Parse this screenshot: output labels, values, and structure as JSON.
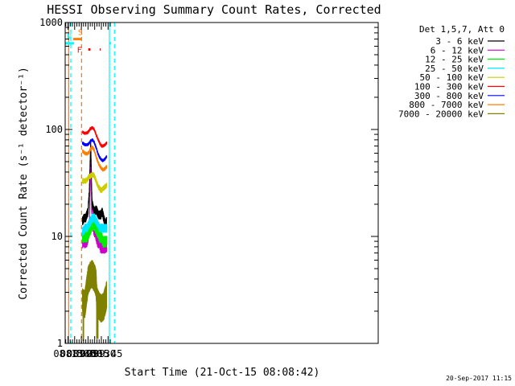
{
  "chart_data": {
    "type": "line",
    "title": "HESSI Observing Summary Count Rates, Corrected",
    "xlabel": "Start Time (21-Oct-15 08:08:42)",
    "ylabel": "Corrected Count Rate (s⁻¹ detector⁻¹)",
    "y_scale": "log",
    "ylim": [
      1,
      1000
    ],
    "xlim_min": [
      488.7,
      1192
    ],
    "y_ticks": [
      {
        "v": 1,
        "label": "1"
      },
      {
        "v": 10,
        "label": "10"
      },
      {
        "v": 100,
        "label": "100"
      },
      {
        "v": 1000,
        "label": "1000"
      }
    ],
    "x_ticks": [
      {
        "v": 495,
        "label": "08:15"
      },
      {
        "v": 510,
        "label": "08:30"
      },
      {
        "v": 525,
        "label": "08:45"
      },
      {
        "v": 540,
        "label": "09:00"
      },
      {
        "v": 555,
        "label": "09:15"
      },
      {
        "v": 570,
        "label": "09:30"
      },
      {
        "v": 585,
        "label": "09:45"
      }
    ],
    "data_span_min": [
      527.5,
      582
    ],
    "legend_header": "Det 1,5,7, Att 0",
    "series": [
      {
        "name": "3 - 6 keV",
        "color": "#000000",
        "x": [
          527.5,
          532,
          535,
          537,
          540,
          543,
          546,
          549,
          552,
          555,
          558,
          561,
          563,
          566,
          569,
          572,
          575,
          577,
          579,
          582
        ],
        "values": [
          14,
          15,
          15,
          16,
          17,
          27,
          75,
          21,
          18,
          17,
          18,
          17,
          16,
          16,
          16,
          17,
          15,
          14,
          13,
          14
        ]
      },
      {
        "name": "6 - 12 keV",
        "color": "#cc00cc",
        "x": [
          527.5,
          533,
          537,
          540,
          543,
          545,
          546,
          548,
          550,
          553,
          556,
          559,
          562,
          565,
          568,
          571,
          574,
          576,
          578,
          582
        ],
        "values": [
          9,
          9,
          9,
          10,
          12,
          30,
          70,
          20,
          13,
          12,
          11,
          10,
          9,
          9,
          8,
          8,
          8,
          8,
          8,
          8
        ]
      },
      {
        "name": "12 - 25 keV",
        "color": "#00ee00",
        "x": [
          527.5,
          533,
          538,
          542,
          546,
          550,
          554,
          558,
          562,
          566,
          570,
          574,
          578,
          582
        ],
        "values": [
          10,
          10,
          10,
          11,
          12,
          13,
          13,
          12,
          11,
          10,
          10,
          9,
          9,
          9
        ]
      },
      {
        "name": "25 - 50 keV",
        "color": "#00e5ff",
        "x": [
          527.5,
          533,
          538,
          542,
          546,
          550,
          554,
          558,
          562,
          566,
          570,
          574,
          578,
          582
        ],
        "values": [
          11,
          12,
          12,
          13,
          14,
          15,
          15,
          14,
          13,
          12,
          12,
          12,
          12,
          12
        ]
      },
      {
        "name": "50 - 100 keV",
        "color": "#cccc00",
        "x": [
          527.5,
          533,
          538,
          542,
          546,
          550,
          554,
          558,
          562,
          566,
          570,
          574,
          578,
          582
        ],
        "values": [
          33,
          33,
          34,
          36,
          37,
          38,
          37,
          33,
          30,
          28,
          27,
          28,
          29,
          30
        ]
      },
      {
        "name": "100 - 300 keV",
        "color": "#ff0000",
        "x": [
          527.5,
          533,
          538,
          542,
          546,
          550,
          554,
          558,
          562,
          566,
          570,
          574,
          578,
          582
        ],
        "values": [
          95,
          92,
          93,
          97,
          102,
          104,
          100,
          90,
          82,
          75,
          70,
          70,
          72,
          75
        ]
      },
      {
        "name": "300 - 800 keV",
        "color": "#0000ff",
        "x": [
          527.5,
          533,
          538,
          542,
          546,
          550,
          554,
          558,
          562,
          566,
          570,
          574,
          578,
          582
        ],
        "values": [
          75,
          72,
          72,
          74,
          78,
          80,
          76,
          68,
          60,
          55,
          52,
          51,
          53,
          56
        ]
      },
      {
        "name": "800 - 7000 keV",
        "color": "#ff7f00",
        "x": [
          527.5,
          533,
          538,
          542,
          546,
          550,
          554,
          558,
          562,
          566,
          570,
          574,
          578,
          582
        ],
        "values": [
          63,
          60,
          59,
          61,
          66,
          68,
          64,
          56,
          50,
          46,
          43,
          42,
          43,
          45
        ]
      },
      {
        "name": "7000 - 20000 keV",
        "color": "#808000",
        "x": [
          527.5,
          533,
          535,
          540,
          545,
          550,
          555,
          558,
          560,
          565,
          570,
          575,
          580,
          582
        ],
        "values": [
          2.5,
          2.4,
          2.8,
          4,
          4.5,
          4.6,
          4.2,
          3.8,
          2.6,
          2.3,
          2.2,
          2.3,
          2.7,
          3
        ]
      }
    ],
    "flags": [
      {
        "label": "S",
        "color": "#ff7f00",
        "from_min": 506.5,
        "to_min": 525.5,
        "level": 700,
        "note": "SAA interval"
      },
      {
        "label": "N",
        "color": "#00ffff",
        "from_min": 488.7,
        "to_min": 508.8,
        "level": 640,
        "note": "Night interval"
      },
      {
        "label": "",
        "color": "#00ffff",
        "from_min": 588,
        "to_min": 592,
        "level": 640,
        "note": "Night interval"
      },
      {
        "label": "F",
        "color": "#ff0000",
        "from_min": 540.5,
        "to_min": 545.5,
        "level": 560,
        "note": "Flare interval"
      },
      {
        "label": "",
        "color": "#ff0000",
        "from_min": 566.5,
        "to_min": 568.2,
        "level": 560,
        "note": "Flare interval"
      }
    ],
    "vertical_lines": [
      {
        "x": 496.5,
        "color": "#ff7f00",
        "style": "solid"
      },
      {
        "x": 501.3,
        "color": "#00ffff",
        "style": "dashed"
      },
      {
        "x": 525.5,
        "color": "#ff7f00",
        "style": "dashed"
      },
      {
        "x": 588,
        "color": "#00ffff",
        "style": "solid"
      },
      {
        "x": 599.5,
        "color": "#00ffff",
        "style": "dashed"
      }
    ],
    "timestamp": "20-Sep-2017 11:15"
  }
}
